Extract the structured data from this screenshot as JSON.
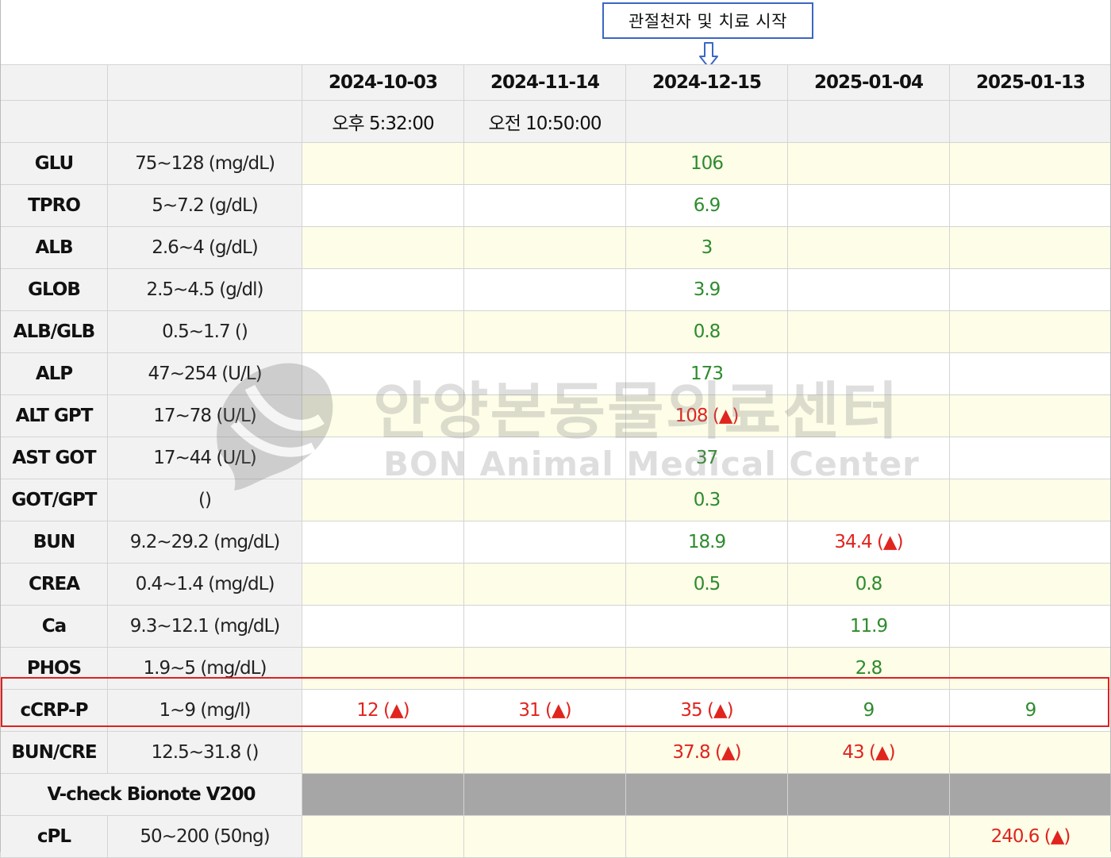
{
  "annotation": {
    "label": "관절천자 및 치료 시작"
  },
  "watermark": {
    "title": "안양본동물의료센터",
    "subtitle": "BON Animal Medical Center"
  },
  "dates": [
    "2024-10-03",
    "2024-11-14",
    "2024-12-15",
    "2025-01-04",
    "2025-01-13"
  ],
  "times": [
    "오후 5:32:00",
    "오전 10:50:00",
    "",
    "",
    ""
  ],
  "colors": {
    "normal": "#2e8b2e",
    "high": "#e0241e",
    "highlight": "#e02020",
    "annotation_border": "#3b66c4"
  },
  "rows": [
    {
      "name": "GLU",
      "ref": "75~128 (mg/dL)",
      "values": [
        "",
        "",
        "106",
        "",
        ""
      ],
      "status": [
        "",
        "",
        "normal",
        "",
        ""
      ]
    },
    {
      "name": "TPRO",
      "ref": "5~7.2 (g/dL)",
      "values": [
        "",
        "",
        "6.9",
        "",
        ""
      ],
      "status": [
        "",
        "",
        "normal",
        "",
        ""
      ]
    },
    {
      "name": "ALB",
      "ref": "2.6~4 (g/dL)",
      "values": [
        "",
        "",
        "3",
        "",
        ""
      ],
      "status": [
        "",
        "",
        "normal",
        "",
        ""
      ]
    },
    {
      "name": "GLOB",
      "ref": "2.5~4.5 (g/dl)",
      "values": [
        "",
        "",
        "3.9",
        "",
        ""
      ],
      "status": [
        "",
        "",
        "normal",
        "",
        ""
      ]
    },
    {
      "name": "ALB/GLB",
      "ref": "0.5~1.7 ()",
      "values": [
        "",
        "",
        "0.8",
        "",
        ""
      ],
      "status": [
        "",
        "",
        "normal",
        "",
        ""
      ]
    },
    {
      "name": "ALP",
      "ref": "47~254 (U/L)",
      "values": [
        "",
        "",
        "173",
        "",
        ""
      ],
      "status": [
        "",
        "",
        "normal",
        "",
        ""
      ]
    },
    {
      "name": "ALT GPT",
      "ref": "17~78 (U/L)",
      "values": [
        "",
        "",
        "108 (▲)",
        "",
        ""
      ],
      "status": [
        "",
        "",
        "high",
        "",
        ""
      ]
    },
    {
      "name": "AST GOT",
      "ref": "17~44 (U/L)",
      "values": [
        "",
        "",
        "37",
        "",
        ""
      ],
      "status": [
        "",
        "",
        "normal",
        "",
        ""
      ]
    },
    {
      "name": "GOT/GPT",
      "ref": "()",
      "values": [
        "",
        "",
        "0.3",
        "",
        ""
      ],
      "status": [
        "",
        "",
        "normal",
        "",
        ""
      ]
    },
    {
      "name": "BUN",
      "ref": "9.2~29.2 (mg/dL)",
      "values": [
        "",
        "",
        "18.9",
        "34.4 (▲)",
        ""
      ],
      "status": [
        "",
        "",
        "normal",
        "high",
        ""
      ]
    },
    {
      "name": "CREA",
      "ref": "0.4~1.4 (mg/dL)",
      "values": [
        "",
        "",
        "0.5",
        "0.8",
        ""
      ],
      "status": [
        "",
        "",
        "normal",
        "normal",
        ""
      ]
    },
    {
      "name": "Ca",
      "ref": "9.3~12.1 (mg/dL)",
      "values": [
        "",
        "",
        "",
        "11.9",
        ""
      ],
      "status": [
        "",
        "",
        "",
        "normal",
        ""
      ]
    },
    {
      "name": "PHOS",
      "ref": "1.9~5 (mg/dL)",
      "values": [
        "",
        "",
        "",
        "2.8",
        ""
      ],
      "status": [
        "",
        "",
        "",
        "normal",
        ""
      ]
    },
    {
      "name": "cCRP-P",
      "ref": "1~9 (mg/l)",
      "values": [
        "12 (▲)",
        "31 (▲)",
        "35 (▲)",
        "9",
        "9"
      ],
      "status": [
        "high",
        "high",
        "high",
        "normal",
        "normal"
      ],
      "highlighted": true
    },
    {
      "name": "BUN/CRE",
      "ref": "12.5~31.8 ()",
      "values": [
        "",
        "",
        "37.8 (▲)",
        "43 (▲)",
        ""
      ],
      "status": [
        "",
        "",
        "high",
        "high",
        ""
      ]
    }
  ],
  "section": {
    "title": "V-check Bionote V200"
  },
  "section_rows": [
    {
      "name": "cPL",
      "ref": "50~200 (50ng)",
      "values": [
        "",
        "",
        "",
        "",
        "240.6 (▲)"
      ],
      "status": [
        "",
        "",
        "",
        "",
        "high"
      ]
    }
  ]
}
